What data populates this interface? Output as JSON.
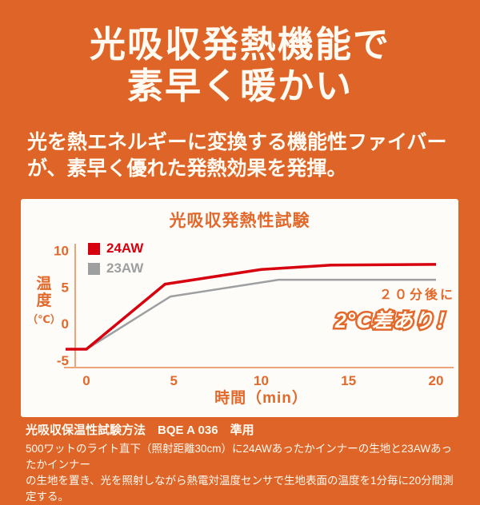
{
  "hero": {
    "line1": "光吸収発熱機能で",
    "line2": "素早く暖かい"
  },
  "subtitle": {
    "line1": "光を熱エネルギーに変換する機能性ファイバー",
    "line2": "が、素早く優れた発熱効果を発揮。"
  },
  "chart_data": {
    "type": "line",
    "title": "光吸収発熱性試験",
    "xlabel": "時間（min）",
    "ylabel": "温度（℃）",
    "ylabel_stack": [
      "温",
      "度",
      "（℃）"
    ],
    "xlim": [
      0,
      20
    ],
    "ylim": [
      -6,
      11
    ],
    "x_ticks": [
      0,
      5,
      10,
      15,
      20
    ],
    "y_ticks": [
      10,
      5,
      0,
      -5
    ],
    "grid": false,
    "legend_position": "top-left",
    "series": [
      {
        "name": "24AW",
        "color": "#d7000f",
        "width": 3.5,
        "points": [
          [
            0,
            -3.5
          ],
          [
            4.5,
            5.4
          ],
          [
            10,
            7.4
          ],
          [
            14,
            8.0
          ],
          [
            20,
            8.1
          ]
        ]
      },
      {
        "name": "23AW",
        "color": "#9e9fa0",
        "width": 2.5,
        "points": [
          [
            0,
            -3.5
          ],
          [
            4.8,
            3.7
          ],
          [
            11,
            6.0
          ],
          [
            20,
            6.0
          ]
        ]
      }
    ],
    "annotation": {
      "line1": "２０分後に",
      "line2": "2℃差あり！"
    }
  },
  "footer": {
    "method": "光吸収保温性試験方法　BQE A 036　準用",
    "desc_line1": "500ワットのライト直下（照射距離30cm）に24AWあったかインナーの生地と23AWあったかインナー",
    "desc_line2": "の生地を置き、光を照射しながら熱電対温度センサで生地表面の温度を1分毎に20分間測定する。"
  },
  "colors": {
    "background": "#de6527",
    "accent": "#e2682b",
    "panel": "#fdfcf8",
    "axis": "#eda478",
    "red": "#d7000f",
    "gray": "#9e9fa0",
    "text": "#fffaf2"
  }
}
